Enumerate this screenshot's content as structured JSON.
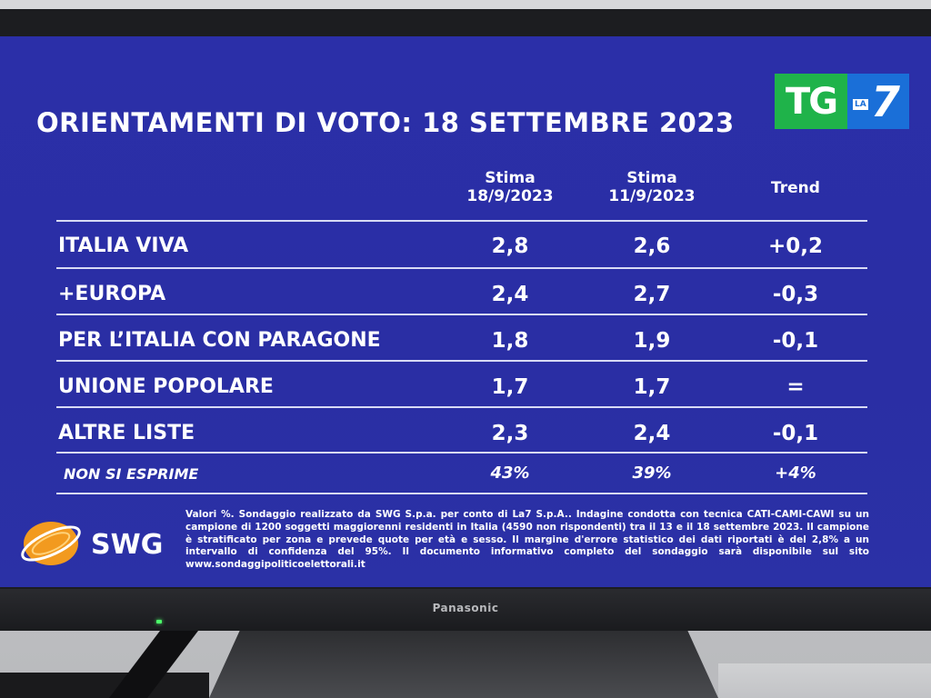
{
  "title": "ORIENTAMENTI DI VOTO: 18 SETTEMBRE 2023",
  "logo": {
    "tg": "TG",
    "la": "LA",
    "seven": "7"
  },
  "columns": {
    "c1": {
      "line1": "Stima",
      "line2": "18/9/2023"
    },
    "c2": {
      "line1": "Stima",
      "line2": "11/9/2023"
    },
    "c3": {
      "line1": "Trend"
    }
  },
  "rows": [
    {
      "label": "ITALIA VIVA",
      "v1": "2,8",
      "v2": "2,6",
      "v3": "+0,2"
    },
    {
      "label": "+EUROPA",
      "v1": "2,4",
      "v2": "2,7",
      "v3": "-0,3"
    },
    {
      "label": "PER L’ITALIA CON PARAGONE",
      "v1": "1,8",
      "v2": "1,9",
      "v3": "-0,1"
    },
    {
      "label": "UNIONE POPOLARE",
      "v1": "1,7",
      "v2": "1,7",
      "v3": "="
    },
    {
      "label": "ALTRE LISTE",
      "v1": "2,3",
      "v2": "2,4",
      "v3": "-0,1"
    },
    {
      "label": "NON SI ESPRIME",
      "v1": "43%",
      "v2": "39%",
      "v3": "+4%"
    }
  ],
  "swg": {
    "name": "SWG"
  },
  "footnote": "Valori %. Sondaggio realizzato da SWG S.p.a. per conto di La7 S.p.A.. Indagine condotta con tecnica CATI-CAMI-CAWI su un campione di 1200 soggetti maggiorenni residenti in Italia (4590 non rispondenti) tra il 13 e il 18 settembre 2023. Il campione è stratificato per zona e prevede quote per età e sesso. Il margine d'errore statistico dei dati riportati è del 2,8% a un intervallo di confidenza del 95%. Il documento informativo completo del sondaggio sarà disponibile sul sito www.sondaggipoliticoelettorali.it",
  "tv_brand": "Panasonic",
  "colors": {
    "screen_bg": "#2b2fa8",
    "tg_green": "#1fb34a",
    "la7_blue": "#1a6fd8",
    "swg_orange": "#f29a1f"
  }
}
